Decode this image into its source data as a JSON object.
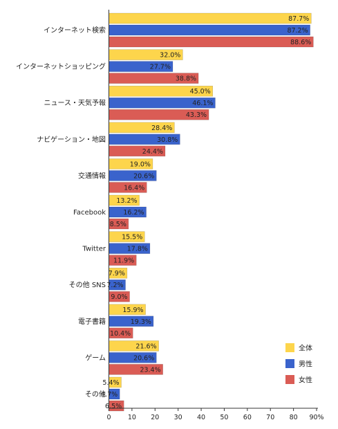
{
  "chart_data": {
    "type": "bar",
    "orientation": "horizontal",
    "categories": [
      "インターネット検索",
      "インターネットショッピング",
      "ニュース・天気予報",
      "ナビゲーション・地図",
      "交通情報",
      "Facebook",
      "Twitter",
      "その他 SNS",
      "電子書籍",
      "ゲーム",
      "その他"
    ],
    "series": [
      {
        "name": "全体",
        "color": "#FDD54C",
        "values": [
          87.7,
          32.0,
          45.0,
          28.4,
          19.0,
          13.2,
          15.5,
          7.9,
          15.9,
          21.6,
          5.4
        ],
        "labels": [
          "87.7%",
          "32.0%",
          "45.0%",
          "28.4%",
          "19.0%",
          "13.2%",
          "15.5%",
          "7.9%",
          "15.9%",
          "21.6%",
          "5.4%"
        ]
      },
      {
        "name": "男性",
        "color": "#3A63CC",
        "values": [
          87.2,
          27.7,
          46.1,
          30.8,
          20.6,
          16.2,
          17.8,
          7.2,
          19.3,
          20.6,
          4.7
        ],
        "labels": [
          "87.2%",
          "27.7%",
          "46.1%",
          "30.8%",
          "20.6%",
          "16.2%",
          "17.8%",
          "7.2%",
          "19.3%",
          "20.6%",
          "4.7%"
        ]
      },
      {
        "name": "女性",
        "color": "#DA5C55",
        "values": [
          88.6,
          38.8,
          43.3,
          24.4,
          16.4,
          8.5,
          11.9,
          9.0,
          10.4,
          23.4,
          6.5
        ],
        "labels": [
          "88.6%",
          "38.8%",
          "43.3%",
          "24.4%",
          "16.4%",
          "8.5%",
          "11.9%",
          "9.0%",
          "10.4%",
          "23.4%",
          "6.5%"
        ]
      }
    ],
    "xlim": [
      0,
      90
    ],
    "xticks": [
      "0",
      "10",
      "20",
      "30",
      "40",
      "50",
      "60",
      "70",
      "80",
      "90%"
    ],
    "xtick_values": [
      0,
      10,
      20,
      30,
      40,
      50,
      60,
      70,
      80,
      90
    ],
    "legend_position": "bottom-right",
    "grid": false
  }
}
